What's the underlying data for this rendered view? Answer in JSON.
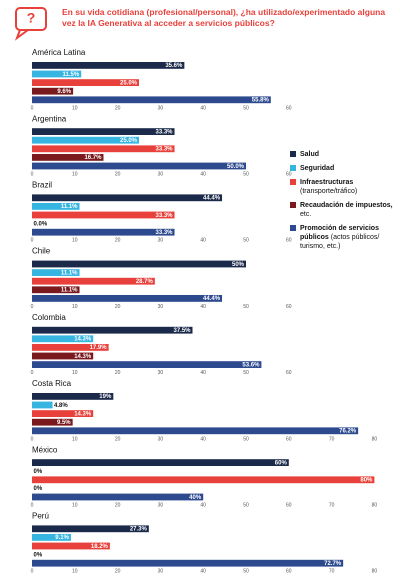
{
  "title": "En su vida cotidiana (profesional/personal), ¿ha utilizado/experimentado alguna vez la IA Generativa al acceder a servicios públicos?",
  "legend": [
    {
      "name": "Salud",
      "color": "#1b2a4a"
    },
    {
      "name": "Seguridad",
      "color": "#36b5e0"
    },
    {
      "name": "Infraestructuras",
      "note": "(transporte/tráfico)",
      "color": "#e8403a"
    },
    {
      "name": "Recaudación de impuestos,",
      "note": "etc.",
      "color": "#7a1a1f"
    },
    {
      "name": "Promoción de servicios públicos",
      "note": "(actos públicos/ turismo, etc.)",
      "color": "#2d4a8f"
    }
  ],
  "chart_data": [
    {
      "type": "bar",
      "title": "América Latina",
      "values": [
        35.6,
        11.5,
        25,
        9.6,
        55.8
      ],
      "value_labels": [
        "35.6%",
        "11.5%",
        "25.0%",
        "9.6%",
        "55.8%"
      ],
      "xlim": [
        0,
        60
      ],
      "xticks": [
        0,
        10,
        20,
        30,
        40,
        50,
        60
      ]
    },
    {
      "type": "bar",
      "title": "Argentina",
      "values": [
        33.3,
        25,
        33.3,
        16.7,
        50
      ],
      "value_labels": [
        "33.3%",
        "25.0%",
        "33.3%",
        "16.7%",
        "50.0%"
      ],
      "xlim": [
        0,
        60
      ],
      "xticks": [
        0,
        10,
        20,
        30,
        40,
        50,
        60
      ]
    },
    {
      "type": "bar",
      "title": "Brazil",
      "values": [
        44.4,
        11.1,
        33.3,
        0,
        33.3
      ],
      "value_labels": [
        "44.4%",
        "11.1%",
        "33.3%",
        "0.0%",
        "33.3%"
      ],
      "xlim": [
        0,
        60
      ],
      "xticks": [
        0,
        10,
        20,
        30,
        40,
        50,
        60
      ]
    },
    {
      "type": "bar",
      "title": "Chile",
      "values": [
        50,
        11.1,
        28.7,
        11.1,
        44.4
      ],
      "value_labels": [
        "50%",
        "11.1%",
        "28.7%",
        "11.1%",
        "44.4%"
      ],
      "xlim": [
        0,
        60
      ],
      "xticks": [
        0,
        10,
        20,
        30,
        40,
        50,
        60
      ]
    },
    {
      "type": "bar",
      "title": "Colombia",
      "values": [
        37.5,
        14.3,
        17.9,
        14.3,
        53.6
      ],
      "value_labels": [
        "37.5%",
        "14.3%",
        "17.9%",
        "14.3%",
        "53.6%"
      ],
      "xlim": [
        0,
        60
      ],
      "xticks": [
        0,
        10,
        20,
        30,
        40,
        50,
        60
      ]
    },
    {
      "type": "bar",
      "title": "Costa Rica",
      "values": [
        19,
        4.8,
        14.3,
        9.5,
        76.2
      ],
      "value_labels": [
        "19%",
        "4.8%",
        "14.3%",
        "9.5%",
        "76.2%"
      ],
      "xlim": [
        0,
        80
      ],
      "xticks": [
        0,
        10,
        20,
        30,
        40,
        50,
        60,
        70,
        80
      ]
    },
    {
      "type": "bar",
      "title": "México",
      "values": [
        60,
        0,
        80,
        0,
        40
      ],
      "value_labels": [
        "60%",
        "0%",
        "80%",
        "0%",
        "40%"
      ],
      "xlim": [
        0,
        80
      ],
      "xticks": [
        0,
        10,
        20,
        30,
        40,
        50,
        60,
        70,
        80
      ]
    },
    {
      "type": "bar",
      "title": "Perú",
      "values": [
        27.3,
        9.1,
        18.2,
        0,
        72.7
      ],
      "value_labels": [
        "27.3%",
        "9.1%",
        "18.2%",
        "0%",
        "72.7%"
      ],
      "xlim": [
        0,
        80
      ],
      "xticks": [
        0,
        10,
        20,
        30,
        40,
        50,
        60,
        70,
        80
      ]
    }
  ]
}
